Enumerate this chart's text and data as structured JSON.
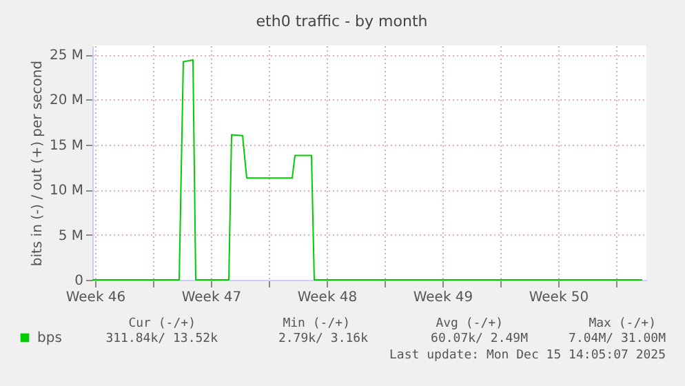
{
  "chart_data": {
    "type": "line",
    "title": "eth0 traffic - by month",
    "ylabel": "bits in (-) / out (+) per second",
    "x": [
      "2025-11-13T08:00",
      "2025-11-17",
      "2025-11-18T14:00",
      "2025-11-18T20:00",
      "2025-11-19T10:00",
      "2025-11-19T14:00",
      "2025-11-21T14:00",
      "2025-11-21T18:00",
      "2025-11-22T10:00",
      "2025-11-22T16:00",
      "2025-11-25T10:00",
      "2025-11-25T14:00",
      "2025-11-26T14:00",
      "2025-11-26T18:00",
      "2025-12-01",
      "2025-12-10",
      "2025-12-16T14:00"
    ],
    "series": [
      {
        "name": "bps",
        "color": "#00cc00",
        "values": [
          0,
          0,
          0,
          24200000,
          24400000,
          0,
          0,
          16100000,
          16000000,
          11300000,
          11300000,
          13800000,
          13800000,
          0,
          0,
          0,
          0
        ]
      }
    ],
    "xlim": [
      "2025-11-13T08:00",
      "2025-12-16T20:00"
    ],
    "xticks": [
      {
        "value": "2025-11-13T12:00",
        "label": "Week 46"
      },
      {
        "value": "2025-11-17",
        "label": null
      },
      {
        "value": "2025-11-20T12:00",
        "label": "Week 47"
      },
      {
        "value": "2025-11-24",
        "label": null
      },
      {
        "value": "2025-11-27T12:00",
        "label": "Week 48"
      },
      {
        "value": "2025-12-01",
        "label": null
      },
      {
        "value": "2025-12-04T12:00",
        "label": "Week 49"
      },
      {
        "value": "2025-12-08",
        "label": null
      },
      {
        "value": "2025-12-11T12:00",
        "label": "Week 50"
      },
      {
        "value": "2025-12-15",
        "label": null
      }
    ],
    "ylim": [
      0,
      26000000
    ],
    "yticks": [
      {
        "value": 0,
        "label": "0"
      },
      {
        "value": 5000000,
        "label": "5 M"
      },
      {
        "value": 10000000,
        "label": "10 M"
      },
      {
        "value": 15000000,
        "label": "15 M"
      },
      {
        "value": 20000000,
        "label": "20 M"
      },
      {
        "value": 25000000,
        "label": "25 M"
      }
    ],
    "grid": true,
    "legend": "bottom left",
    "annotations": [
      "Cur (-/+)",
      "311.84k/ 13.52k",
      "Min (-/+)",
      "2.79k/  3.16k",
      "Avg (-/+)",
      "60.07k/  2.49M",
      "Max (-/+)",
      "7.04M/ 31.00M",
      "Last update:  Mon Dec 15 14:05:07 2025"
    ]
  }
}
